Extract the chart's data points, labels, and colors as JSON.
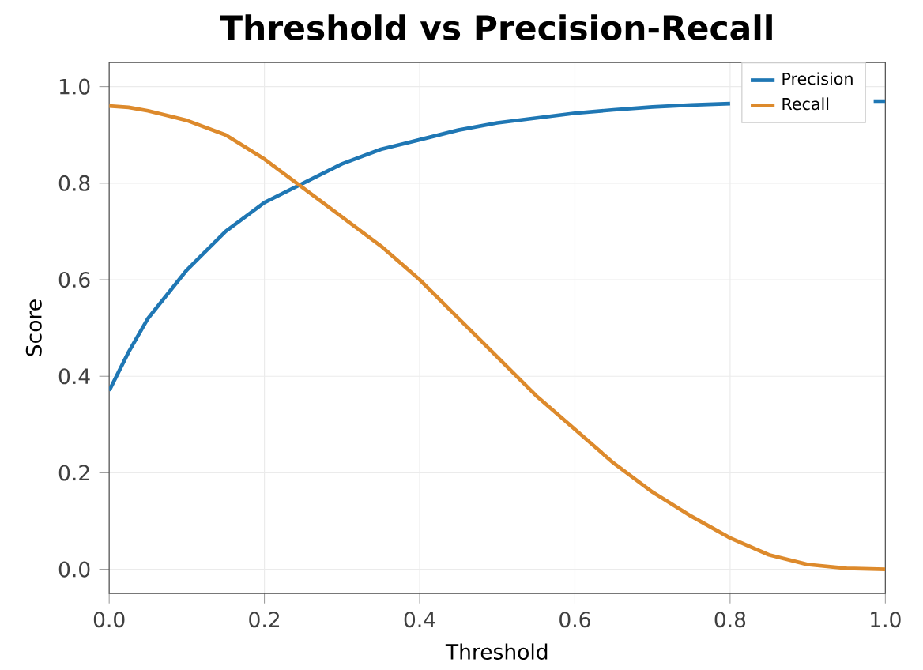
{
  "chart_data": {
    "type": "line",
    "title": "Threshold vs Precision-Recall",
    "xlabel": "Threshold",
    "ylabel": "Score",
    "xlim": [
      0,
      1
    ],
    "ylim": [
      -0.05,
      1.05
    ],
    "xticks": [
      {
        "value": 0,
        "label": "0.0"
      },
      0.2,
      0.4,
      0.6,
      0.8,
      {
        "value": 1,
        "label": "1.0"
      }
    ],
    "yticks": [
      {
        "value": 0,
        "label": "0.0"
      },
      0.2,
      0.4,
      0.6,
      0.8,
      {
        "value": 1,
        "label": "1.0"
      }
    ],
    "grid": true,
    "legend": "top right",
    "x": [
      0,
      0.025,
      0.05,
      0.075,
      0.1,
      0.15,
      0.2,
      0.25,
      0.3,
      0.35,
      0.4,
      0.45,
      0.5,
      0.55,
      0.6,
      0.65,
      0.7,
      0.75,
      0.8,
      0.85,
      0.9,
      0.95,
      1.0
    ],
    "series": [
      {
        "name": "Precision",
        "color": "#1f77b4",
        "x": [
          0,
          0.025,
          0.05,
          0.075,
          0.1,
          0.15,
          0.2,
          0.25,
          0.3,
          0.35,
          0.4,
          0.45,
          0.5,
          0.55,
          0.6,
          0.65,
          0.7,
          0.75,
          0.8,
          0.85,
          0.9,
          0.95,
          0.985,
          1.0
        ],
        "values": [
          0.37,
          0.45,
          0.52,
          0.57,
          0.62,
          0.7,
          0.76,
          0.8,
          0.84,
          0.87,
          0.89,
          0.91,
          0.925,
          0.935,
          0.945,
          0.952,
          0.958,
          0.962,
          0.965,
          null,
          null,
          null,
          0.97,
          0.97
        ]
      },
      {
        "name": "Recall",
        "color": "#dd8a2c",
        "values": [
          0.96,
          0.957,
          0.95,
          0.94,
          0.93,
          0.9,
          0.85,
          0.79,
          0.73,
          0.67,
          0.6,
          0.52,
          0.44,
          0.36,
          0.29,
          0.22,
          0.16,
          0.11,
          0.065,
          0.03,
          0.01,
          0.002,
          0
        ]
      }
    ]
  }
}
